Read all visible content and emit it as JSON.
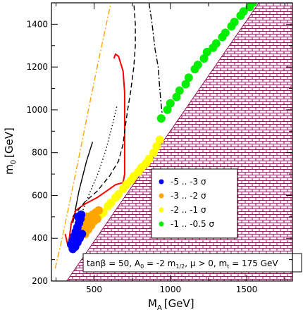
{
  "chart_data": {
    "type": "scatter",
    "title": "",
    "xlabel": "M",
    "xlabel_sub": "A",
    "xlabel_unit": "[GeV]",
    "ylabel": "m",
    "ylabel_sub": "0",
    "ylabel_unit": "[GeV]",
    "xlim": [
      220,
      1800
    ],
    "ylim": [
      200,
      1500
    ],
    "xticks": [
      500,
      1000,
      1500
    ],
    "yticks": [
      200,
      400,
      600,
      800,
      1000,
      1200,
      1400
    ],
    "grid": false,
    "legend_position": "lower-center",
    "annotation": {
      "text_a": "tanβ = 50, A",
      "sub_a": "0",
      "text_b": " = -2 m",
      "sub_b": "1/2",
      "text_c": ", μ > 0, m",
      "sub_c": "t",
      "text_d": " = 175 GeV"
    },
    "excluded_region": {
      "style": "brick-hatch",
      "color": "#8b1a5a",
      "boundary": [
        [
          320,
          200
        ],
        [
          1580,
          1500
        ]
      ]
    },
    "legend": [
      {
        "label": "-5 .. -3 σ",
        "color": "#0000ff"
      },
      {
        "label": "-3 .. -2 σ",
        "color": "#ffa500"
      },
      {
        "label": "-2 .. -1 σ",
        "color": "#ffff00"
      },
      {
        "label": "-1 .. -0.5 σ",
        "color": "#00ee00"
      }
    ],
    "bands": [
      {
        "name": "-1 .. -0.5 σ",
        "color": "#00ee00",
        "points": [
          [
            940,
            960
          ],
          [
            1000,
            1030
          ],
          [
            1060,
            1090
          ],
          [
            1120,
            1150
          ],
          [
            1180,
            1210
          ],
          [
            1240,
            1270
          ],
          [
            1300,
            1310
          ],
          [
            1360,
            1360
          ],
          [
            1420,
            1410
          ],
          [
            1480,
            1460
          ],
          [
            1540,
            1500
          ],
          [
            980,
            1000
          ],
          [
            1040,
            1060
          ],
          [
            1100,
            1120
          ],
          [
            1160,
            1190
          ],
          [
            1220,
            1240
          ],
          [
            1280,
            1290
          ],
          [
            1340,
            1340
          ],
          [
            1400,
            1390
          ],
          [
            1460,
            1440
          ],
          [
            1520,
            1480
          ]
        ]
      },
      {
        "name": "-2 .. -1 σ",
        "color": "#ffff00",
        "points": [
          [
            540,
            510
          ],
          [
            590,
            550
          ],
          [
            640,
            590
          ],
          [
            690,
            630
          ],
          [
            740,
            670
          ],
          [
            790,
            710
          ],
          [
            840,
            750
          ],
          [
            890,
            800
          ],
          [
            930,
            860
          ],
          [
            560,
            520
          ],
          [
            610,
            565
          ],
          [
            660,
            605
          ],
          [
            710,
            650
          ],
          [
            760,
            690
          ],
          [
            810,
            730
          ],
          [
            860,
            770
          ],
          [
            910,
            830
          ]
        ]
      },
      {
        "name": "-3 .. -2 σ",
        "color": "#ffa500",
        "points": [
          [
            410,
            440
          ],
          [
            430,
            460
          ],
          [
            450,
            480
          ],
          [
            470,
            500
          ],
          [
            490,
            510
          ],
          [
            510,
            520
          ],
          [
            530,
            530
          ],
          [
            440,
            420
          ],
          [
            460,
            440
          ],
          [
            480,
            460
          ],
          [
            500,
            480
          ],
          [
            520,
            490
          ],
          [
            420,
            480
          ],
          [
            450,
            500
          ]
        ]
      },
      {
        "name": "-5 .. -3 σ",
        "color": "#0000ff",
        "points": [
          [
            350,
            370
          ],
          [
            360,
            390
          ],
          [
            370,
            410
          ],
          [
            380,
            430
          ],
          [
            390,
            450
          ],
          [
            400,
            470
          ],
          [
            410,
            490
          ],
          [
            415,
            510
          ],
          [
            360,
            350
          ],
          [
            375,
            360
          ],
          [
            390,
            380
          ],
          [
            405,
            400
          ],
          [
            420,
            420
          ],
          [
            395,
            500
          ]
        ]
      }
    ],
    "contours": [
      {
        "style": "dash-dot",
        "color": "#ffa500",
        "points": [
          [
            245,
            260
          ],
          [
            290,
            400
          ],
          [
            340,
            570
          ],
          [
            400,
            780
          ],
          [
            460,
            990
          ],
          [
            520,
            1200
          ],
          [
            580,
            1400
          ],
          [
            610,
            1500
          ]
        ]
      },
      {
        "style": "solid",
        "color": "#000000",
        "points": [
          [
            360,
            470
          ],
          [
            400,
            620
          ],
          [
            450,
            760
          ],
          [
            490,
            850
          ]
        ]
      },
      {
        "style": "dotted",
        "color": "#000000",
        "points": [
          [
            380,
            450
          ],
          [
            420,
            520
          ],
          [
            470,
            610
          ],
          [
            530,
            710
          ],
          [
            580,
            820
          ],
          [
            620,
            930
          ],
          [
            650,
            1020
          ]
        ]
      },
      {
        "style": "solid",
        "color": "#ff0000",
        "points": [
          [
            310,
            420
          ],
          [
            330,
            360
          ],
          [
            350,
            470
          ],
          [
            380,
            530
          ],
          [
            440,
            560
          ],
          [
            520,
            590
          ],
          [
            580,
            620
          ],
          [
            640,
            650
          ],
          [
            690,
            660
          ],
          [
            700,
            700
          ],
          [
            700,
            900
          ],
          [
            700,
            1080
          ],
          [
            690,
            1180
          ],
          [
            660,
            1250
          ],
          [
            640,
            1260
          ],
          [
            630,
            1240
          ]
        ]
      },
      {
        "style": "dashed",
        "color": "#000000",
        "points": [
          [
            360,
            500
          ],
          [
            440,
            570
          ],
          [
            520,
            620
          ],
          [
            600,
            690
          ],
          [
            660,
            760
          ],
          [
            690,
            840
          ],
          [
            700,
            900
          ],
          [
            720,
            1000
          ],
          [
            740,
            1090
          ],
          [
            760,
            1200
          ],
          [
            770,
            1300
          ],
          [
            770,
            1400
          ],
          [
            760,
            1500
          ]
        ]
      },
      {
        "style": "dash-dot",
        "color": "#000000",
        "points": [
          [
            860,
            1500
          ],
          [
            880,
            1400
          ],
          [
            900,
            1280
          ],
          [
            920,
            1200
          ],
          [
            930,
            1100
          ],
          [
            940,
            1020
          ],
          [
            950,
            960
          ]
        ]
      }
    ]
  }
}
